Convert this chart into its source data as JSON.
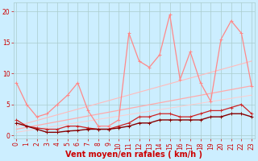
{
  "background_color": "#cceeff",
  "grid_color": "#aacccc",
  "xlabel": "Vent moyen/en rafales ( km/h )",
  "xlabel_color": "#cc0000",
  "xlabel_fontsize": 7,
  "yticks": [
    0,
    5,
    10,
    15,
    20
  ],
  "xticks": [
    0,
    1,
    2,
    3,
    4,
    5,
    6,
    7,
    8,
    9,
    10,
    11,
    12,
    13,
    14,
    15,
    16,
    17,
    18,
    19,
    20,
    21,
    22,
    23
  ],
  "xlim": [
    -0.3,
    23.3
  ],
  "ylim": [
    -0.5,
    21.5
  ],
  "tick_color": "#cc0000",
  "tick_fontsize": 5.5,
  "line_vent_x": [
    0,
    1,
    2,
    3,
    4,
    5,
    6,
    7,
    8,
    9,
    10,
    11,
    12,
    13,
    14,
    15,
    16,
    17,
    18,
    19,
    20,
    21,
    22,
    23
  ],
  "line_vent_y": [
    2.0,
    1.5,
    1.0,
    0.5,
    0.5,
    0.7,
    0.8,
    1.0,
    1.0,
    1.0,
    1.2,
    1.5,
    2.0,
    2.0,
    2.5,
    2.5,
    2.5,
    2.5,
    2.5,
    3.0,
    3.0,
    3.5,
    3.5,
    3.0
  ],
  "line_vent_color": "#880000",
  "line_vent_lw": 1.0,
  "line_mid_x": [
    0,
    1,
    2,
    3,
    4,
    5,
    6,
    7,
    8,
    9,
    10,
    11,
    12,
    13,
    14,
    15,
    16,
    17,
    18,
    19,
    20,
    21,
    22,
    23
  ],
  "line_mid_y": [
    2.5,
    1.5,
    1.2,
    1.0,
    1.0,
    1.5,
    1.5,
    1.2,
    1.0,
    1.0,
    1.5,
    2.0,
    3.0,
    3.0,
    3.5,
    3.5,
    3.0,
    3.0,
    3.5,
    4.0,
    4.0,
    4.5,
    5.0,
    3.5
  ],
  "line_mid_color": "#cc2222",
  "line_mid_lw": 0.9,
  "line_raf_x": [
    0,
    1,
    2,
    3,
    4,
    5,
    6,
    7,
    8,
    9,
    10,
    11,
    12,
    13,
    14,
    15,
    16,
    17,
    18,
    19,
    20,
    21,
    22,
    23
  ],
  "line_raf_y": [
    8.5,
    5.0,
    3.0,
    3.5,
    5.0,
    6.5,
    8.5,
    4.0,
    1.5,
    1.5,
    2.5,
    16.5,
    12.0,
    11.0,
    13.0,
    19.5,
    9.0,
    13.5,
    8.5,
    5.5,
    15.5,
    18.5,
    16.5,
    8.0
  ],
  "line_raf_color": "#ff8888",
  "line_raf_lw": 0.9,
  "trend1_x": [
    0,
    23
  ],
  "trend1_y": [
    1.0,
    8.0
  ],
  "trend1_color": "#ffaaaa",
  "trend1_lw": 0.9,
  "trend2_x": [
    0,
    23
  ],
  "trend2_y": [
    1.5,
    12.0
  ],
  "trend2_color": "#ffbbbb",
  "trend2_lw": 0.8,
  "trend3_x": [
    0,
    23
  ],
  "trend3_y": [
    0.5,
    6.5
  ],
  "trend3_color": "#ffcccc",
  "trend3_lw": 0.7
}
